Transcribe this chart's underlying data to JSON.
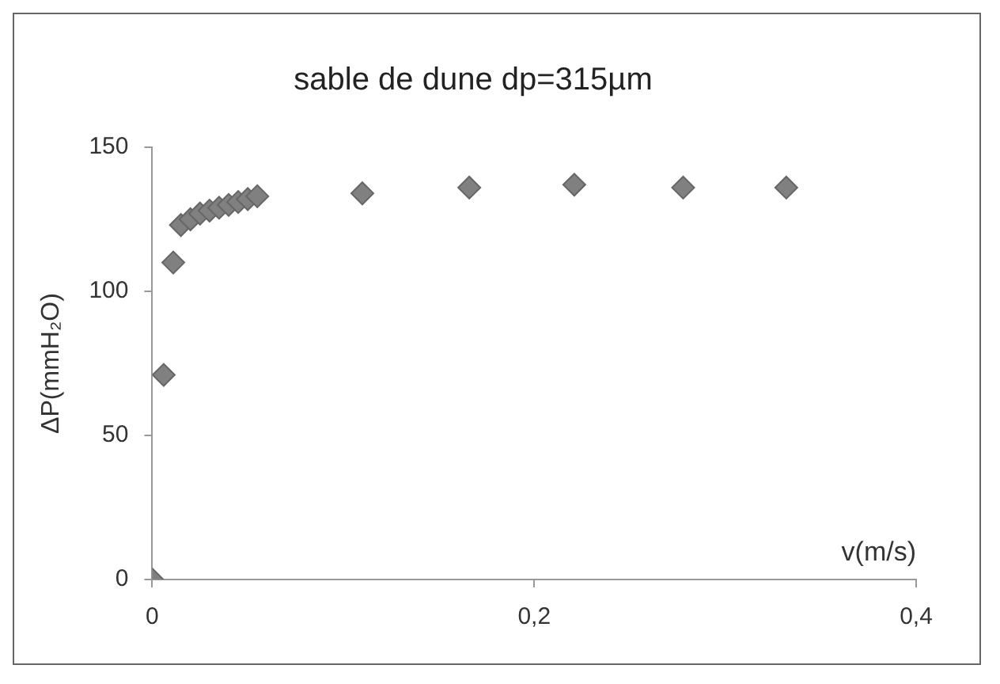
{
  "chart_data": {
    "type": "scatter",
    "title": "sable de dune dp=315µm",
    "xlabel": "v(m/s)",
    "ylabel": "ΔP(mmH₂O)",
    "x": [
      0,
      0.006,
      0.011,
      0.015,
      0.02,
      0.025,
      0.03,
      0.035,
      0.04,
      0.045,
      0.05,
      0.055,
      0.11,
      0.166,
      0.221,
      0.278,
      0.332
    ],
    "values": [
      0,
      71,
      110,
      123,
      125,
      127,
      128,
      129,
      130,
      131,
      132,
      133,
      134,
      136,
      137,
      136,
      136
    ],
    "color": "#808080",
    "marker": "diamond",
    "grid": false,
    "legend": false,
    "xlim": [
      0,
      0.4
    ],
    "xticks": [
      0,
      {
        "value": 0.2,
        "label": "0,2"
      },
      {
        "value": 0.4,
        "label": "0,4"
      }
    ],
    "ylim": [
      0,
      150
    ],
    "yticks": [
      0,
      50,
      100,
      150
    ]
  }
}
